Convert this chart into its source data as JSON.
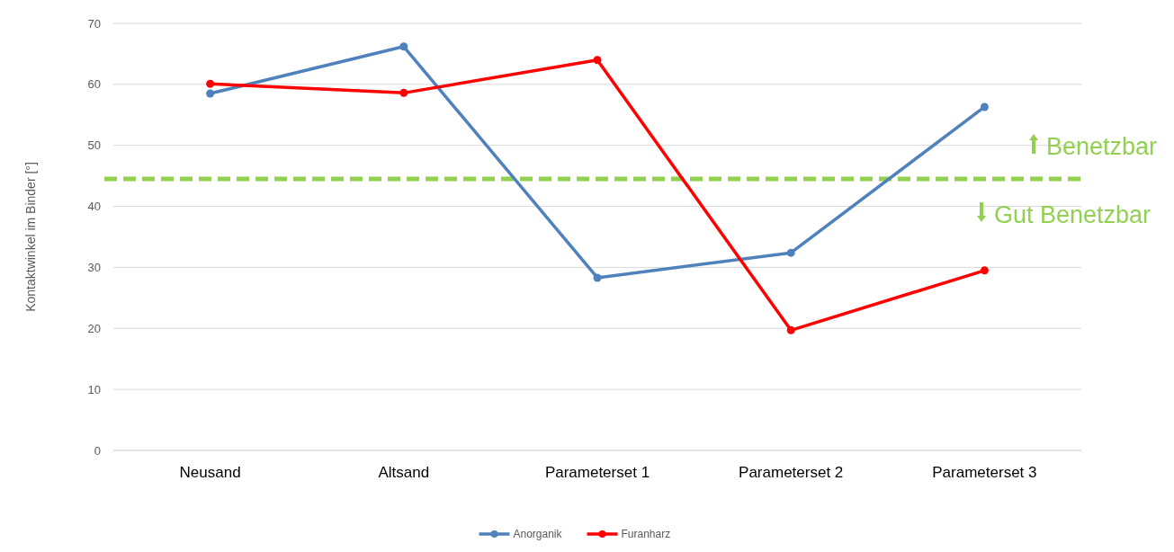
{
  "chart_data": {
    "type": "line",
    "ylabel": "Kontaktwinkel im Binder [°]",
    "categories": [
      "Neusand",
      "Altsand",
      "Parameterset 1",
      "Parameterset 2",
      "Parameterset 3"
    ],
    "series": [
      {
        "name": "Anorganik",
        "color": "#4f81bd",
        "values": [
          58.5,
          66.2,
          28.3,
          32.4,
          56.3
        ]
      },
      {
        "name": "Furanharz",
        "color": "#ff0000",
        "values": [
          60.1,
          58.6,
          64.0,
          19.7,
          29.5
        ]
      }
    ],
    "ylim": [
      0,
      70
    ],
    "yticks": [
      0,
      10,
      20,
      30,
      40,
      50,
      60,
      70
    ],
    "grid": "y",
    "legend": "bottom",
    "marker": "circle",
    "line_style": "solid",
    "ref_lines": [
      {
        "axis": "y",
        "value": 44.5,
        "color": "#92d050",
        "line_style": "dashed"
      }
    ],
    "annotations": [
      "Benetzbar",
      "Gut Benetzbar"
    ]
  }
}
